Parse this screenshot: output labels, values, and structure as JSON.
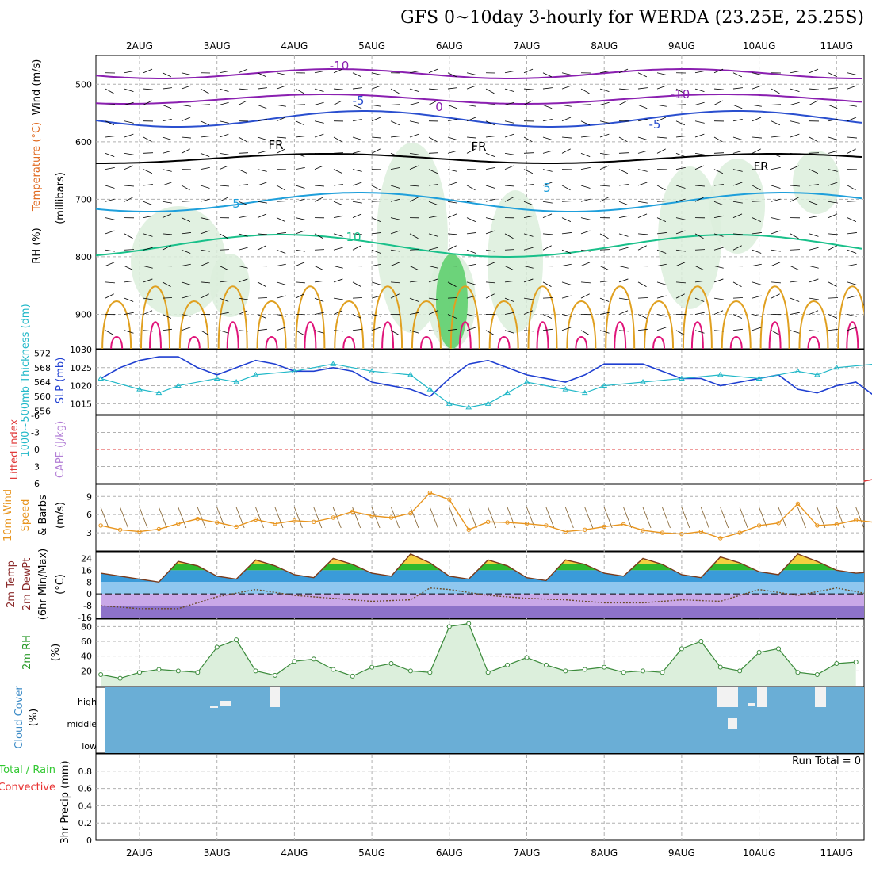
{
  "title": "GFS 0~10day 3-hourly for WERDA (23.25E, 25.25S)",
  "days": [
    "2AUG",
    "3AUG",
    "4AUG",
    "5AUG",
    "6AUG",
    "7AUG",
    "8AUG",
    "9AUG",
    "10AUG",
    "11AUG"
  ],
  "colors": {
    "grid": "#b0b0b0",
    "temp_cold": "#8a1fb0",
    "temp_cool": "#2a4fcf",
    "temp_mild": "#1e9fdb",
    "temp_warm": "#19c08a",
    "temp_hot": "#e0a020",
    "temp_hotter": "#e06a20",
    "temp_hottest": "#e0157a",
    "slp_line": "#1f3fd1",
    "thickness_line": "#22b8c8",
    "lifted_index": "#e03a3a",
    "wind_speed": "#e8951e",
    "rh_fill": "#39c739",
    "cloud": "#6aaed6",
    "precip_total": "#32c832",
    "precip_conv": "#e83232"
  },
  "panels": {
    "upper": {
      "ylabels": [
        "Wind (m/s)",
        "Temperature (°C)",
        "RH (%)",
        "(millibars)"
      ],
      "ticks": [
        "500",
        "600",
        "700",
        "800",
        "900"
      ],
      "contour_labels": [
        "-10",
        "-10",
        "-5",
        "-5",
        "0",
        "FR",
        "FR",
        "FR",
        "5",
        "5",
        "10",
        "10",
        "10",
        "10"
      ]
    },
    "slp": {
      "ylabel_left": "1000~500mb Thickness (dm)",
      "ylabel_right": "SLP (mb)",
      "ticks_left": [
        "572",
        "568",
        "564",
        "560",
        "556"
      ],
      "ticks_right": [
        "1030",
        "1025",
        "1020",
        "1015"
      ]
    },
    "cape": {
      "ylabel_a": "Lifted Index",
      "ylabel_b": "CAPE (J/kg)",
      "ticks": [
        "-6",
        "-3",
        "0",
        "3",
        "6"
      ]
    },
    "wind": {
      "ylabel_a": "10m Wind",
      "ylabel_b": "Speed",
      "ylabel_c": "& Barbs",
      "ylabel_d": "(m/s)",
      "ticks": [
        "9",
        "6",
        "3"
      ]
    },
    "temp": {
      "ylabel_a": "2m Temp",
      "ylabel_b": "2m DewPt",
      "ylabel_c": "(6hr Min/Max)",
      "ylabel_d": "(°C)",
      "ticks": [
        "24",
        "16",
        "8",
        "0",
        "-8",
        "-16"
      ]
    },
    "rh": {
      "ylabel_a": "2m RH",
      "ylabel_b": "(%)",
      "ticks": [
        "80",
        "60",
        "40",
        "20"
      ]
    },
    "cloud": {
      "ylabel_a": "Cloud Cover",
      "ylabel_b": "(%)",
      "levels": [
        "high",
        "middle",
        "low"
      ]
    },
    "precip": {
      "ylabel_a": "Total / Rain",
      "ylabel_b": "Convective",
      "ylabel_c": "3hr Precip (mm)",
      "ticks": [
        "0.8",
        "0.6",
        "0.4",
        "0.2",
        "0"
      ],
      "run_total": "Run Total = 0"
    }
  },
  "chart_data": [
    {
      "type": "line",
      "name": "slp_thickness",
      "x_unit": "days from 2AUG 00Z",
      "slp_mb": [
        [
          -0.5,
          1022
        ],
        [
          -0.25,
          1025
        ],
        [
          0,
          1027
        ],
        [
          0.25,
          1028
        ],
        [
          0.5,
          1028
        ],
        [
          0.75,
          1025
        ],
        [
          1,
          1023
        ],
        [
          1.25,
          1025
        ],
        [
          1.5,
          1027
        ],
        [
          1.75,
          1026
        ],
        [
          2,
          1024
        ],
        [
          2.25,
          1024
        ],
        [
          2.5,
          1025
        ],
        [
          2.75,
          1024
        ],
        [
          3,
          1021
        ],
        [
          3.25,
          1020
        ],
        [
          3.5,
          1019
        ],
        [
          3.75,
          1017
        ],
        [
          4,
          1022
        ],
        [
          4.25,
          1026
        ],
        [
          4.5,
          1027
        ],
        [
          4.75,
          1025
        ],
        [
          5,
          1023
        ],
        [
          5.25,
          1022
        ],
        [
          5.5,
          1021
        ],
        [
          5.75,
          1023
        ],
        [
          6,
          1026
        ],
        [
          6.25,
          1026
        ],
        [
          6.5,
          1026
        ],
        [
          6.75,
          1024
        ],
        [
          7,
          1022
        ],
        [
          7.25,
          1022
        ],
        [
          7.5,
          1020
        ],
        [
          7.75,
          1021
        ],
        [
          8,
          1022
        ],
        [
          8.25,
          1023
        ],
        [
          8.5,
          1019
        ],
        [
          8.75,
          1018
        ],
        [
          9,
          1020
        ],
        [
          9.25,
          1021
        ],
        [
          9.5,
          1017
        ],
        [
          9.75,
          1018
        ],
        [
          10,
          1019
        ],
        [
          10.25,
          1021
        ]
      ],
      "thickness_dm": [
        [
          -0.5,
          565
        ],
        [
          0,
          562
        ],
        [
          0.25,
          561
        ],
        [
          0.5,
          563
        ],
        [
          1,
          565
        ],
        [
          1.25,
          564
        ],
        [
          1.5,
          566
        ],
        [
          2,
          567
        ],
        [
          2.5,
          569
        ],
        [
          3,
          567
        ],
        [
          3.5,
          566
        ],
        [
          3.75,
          562
        ],
        [
          4,
          558
        ],
        [
          4.25,
          557
        ],
        [
          4.5,
          558
        ],
        [
          4.75,
          561
        ],
        [
          5,
          564
        ],
        [
          5.5,
          562
        ],
        [
          5.75,
          561
        ],
        [
          6,
          563
        ],
        [
          6.5,
          564
        ],
        [
          7,
          565
        ],
        [
          7.5,
          566
        ],
        [
          8,
          565
        ],
        [
          8.5,
          567
        ],
        [
          8.75,
          566
        ],
        [
          9,
          568
        ],
        [
          9.5,
          569
        ],
        [
          10,
          569
        ],
        [
          10.25,
          568
        ]
      ]
    },
    {
      "type": "line",
      "name": "wind_speed_10m",
      "x_unit": "days from 2AUG 00Z",
      "y_unit": "m/s",
      "values": [
        [
          -0.5,
          4.2
        ],
        [
          -0.25,
          3.5
        ],
        [
          0,
          3.2
        ],
        [
          0.25,
          3.6
        ],
        [
          0.5,
          4.5
        ],
        [
          0.75,
          5.3
        ],
        [
          1,
          4.7
        ],
        [
          1.25,
          4.0
        ],
        [
          1.5,
          5.2
        ],
        [
          1.75,
          4.5
        ],
        [
          2,
          5.0
        ],
        [
          2.25,
          4.8
        ],
        [
          2.5,
          5.5
        ],
        [
          2.75,
          6.5
        ],
        [
          3,
          5.8
        ],
        [
          3.25,
          5.5
        ],
        [
          3.5,
          6.2
        ],
        [
          3.75,
          9.6
        ],
        [
          4,
          8.5
        ],
        [
          4.25,
          3.5
        ],
        [
          4.5,
          4.8
        ],
        [
          4.75,
          4.7
        ],
        [
          5,
          4.5
        ],
        [
          5.25,
          4.2
        ],
        [
          5.5,
          3.2
        ],
        [
          5.75,
          3.5
        ],
        [
          6,
          4.0
        ],
        [
          6.25,
          4.4
        ],
        [
          6.5,
          3.4
        ],
        [
          6.75,
          3.0
        ],
        [
          7,
          2.8
        ],
        [
          7.25,
          3.2
        ],
        [
          7.5,
          2.1
        ],
        [
          7.75,
          3.0
        ],
        [
          8,
          4.2
        ],
        [
          8.25,
          4.6
        ],
        [
          8.5,
          7.8
        ],
        [
          8.75,
          4.2
        ],
        [
          9,
          4.4
        ],
        [
          9.25,
          5.1
        ],
        [
          9.5,
          4.7
        ],
        [
          9.75,
          4.5
        ],
        [
          10,
          4.3
        ],
        [
          10.25,
          4.3
        ]
      ],
      "ylim": [
        0,
        11
      ]
    },
    {
      "type": "area",
      "name": "temp_2m",
      "x_unit": "days from 2AUG 00Z",
      "y_unit": "°C",
      "temperature": [
        [
          -0.5,
          14
        ],
        [
          -0.25,
          12
        ],
        [
          0,
          10
        ],
        [
          0.25,
          8
        ],
        [
          0.5,
          22
        ],
        [
          0.75,
          19
        ],
        [
          1,
          12
        ],
        [
          1.25,
          10
        ],
        [
          1.5,
          23
        ],
        [
          1.75,
          19
        ],
        [
          2,
          13
        ],
        [
          2.25,
          11
        ],
        [
          2.5,
          24
        ],
        [
          2.75,
          20
        ],
        [
          3,
          14
        ],
        [
          3.25,
          12
        ],
        [
          3.5,
          27
        ],
        [
          3.75,
          21
        ],
        [
          4,
          12
        ],
        [
          4.25,
          10
        ],
        [
          4.5,
          23
        ],
        [
          4.75,
          19
        ],
        [
          5,
          11
        ],
        [
          5.25,
          9
        ],
        [
          5.5,
          23
        ],
        [
          5.75,
          20
        ],
        [
          6,
          14
        ],
        [
          6.25,
          12
        ],
        [
          6.5,
          24
        ],
        [
          6.75,
          20
        ],
        [
          7,
          13
        ],
        [
          7.25,
          11
        ],
        [
          7.5,
          25
        ],
        [
          7.75,
          21
        ],
        [
          8,
          15
        ],
        [
          8.25,
          13
        ],
        [
          8.5,
          27
        ],
        [
          8.75,
          22
        ],
        [
          9,
          16
        ],
        [
          9.25,
          14
        ],
        [
          9.5,
          15
        ]
      ],
      "dewpoint": [
        [
          -0.5,
          -8
        ],
        [
          0,
          -10
        ],
        [
          0.5,
          -10
        ],
        [
          1,
          -2
        ],
        [
          1.5,
          3
        ],
        [
          2,
          -1
        ],
        [
          2.5,
          -3
        ],
        [
          3,
          -5
        ],
        [
          3.5,
          -4
        ],
        [
          3.75,
          4
        ],
        [
          4,
          3
        ],
        [
          4.5,
          -1
        ],
        [
          5,
          -3
        ],
        [
          5.5,
          -4
        ],
        [
          6,
          -6
        ],
        [
          6.5,
          -6
        ],
        [
          7,
          -4
        ],
        [
          7.5,
          -5
        ],
        [
          8,
          3
        ],
        [
          8.5,
          -1
        ],
        [
          9,
          4
        ],
        [
          9.5,
          -1
        ],
        [
          10,
          -3
        ],
        [
          10.25,
          -2
        ]
      ],
      "ylim": [
        -16,
        28
      ]
    },
    {
      "type": "area",
      "name": "rh_2m",
      "x_unit": "days from 2AUG 00Z",
      "y_unit": "%",
      "values": [
        [
          -0.5,
          15
        ],
        [
          -0.25,
          10
        ],
        [
          0,
          18
        ],
        [
          0.25,
          22
        ],
        [
          0.5,
          20
        ],
        [
          0.75,
          18
        ],
        [
          1,
          52
        ],
        [
          1.25,
          62
        ],
        [
          1.5,
          20
        ],
        [
          1.75,
          14
        ],
        [
          2,
          33
        ],
        [
          2.25,
          36
        ],
        [
          2.5,
          22
        ],
        [
          2.75,
          13
        ],
        [
          3,
          25
        ],
        [
          3.25,
          30
        ],
        [
          3.5,
          20
        ],
        [
          3.75,
          18
        ],
        [
          4,
          80
        ],
        [
          4.25,
          84
        ],
        [
          4.5,
          18
        ],
        [
          4.75,
          28
        ],
        [
          5,
          38
        ],
        [
          5.25,
          28
        ],
        [
          5.5,
          20
        ],
        [
          5.75,
          22
        ],
        [
          6,
          25
        ],
        [
          6.25,
          18
        ],
        [
          6.5,
          20
        ],
        [
          6.75,
          18
        ],
        [
          7,
          50
        ],
        [
          7.25,
          60
        ],
        [
          7.5,
          25
        ],
        [
          7.75,
          20
        ],
        [
          8,
          45
        ],
        [
          8.25,
          50
        ],
        [
          8.5,
          18
        ],
        [
          8.75,
          15
        ],
        [
          9,
          30
        ],
        [
          9.25,
          32
        ]
      ],
      "ylim": [
        0,
        90
      ]
    },
    {
      "type": "bar",
      "name": "precip_3hr",
      "y_unit": "mm",
      "values": [],
      "ylim": [
        0,
        1
      ]
    }
  ]
}
